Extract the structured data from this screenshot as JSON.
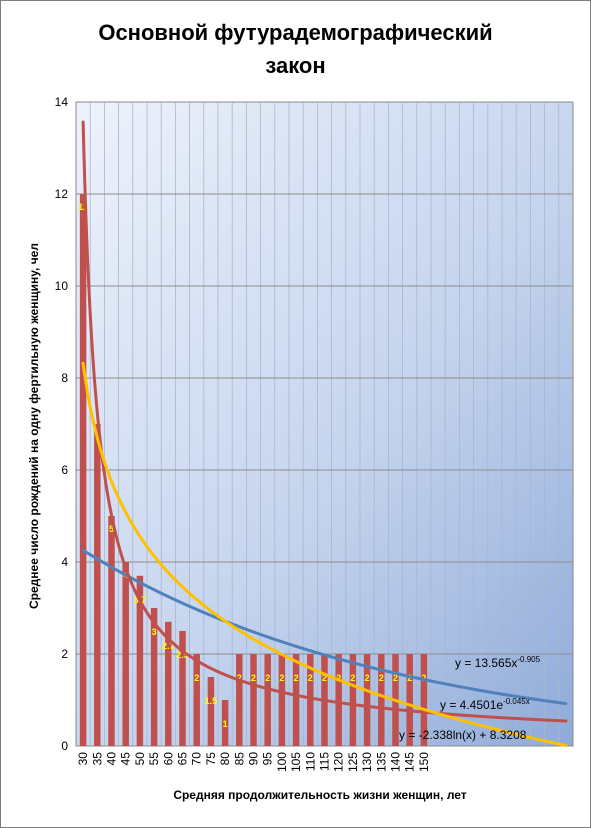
{
  "chart_data": {
    "type": "bar",
    "title": "Основной футурадемографический закон",
    "title_lines": [
      "Основной футурадемографический",
      "закон"
    ],
    "xlabel": "Средняя продолжительность жизни женщин, лет",
    "ylabel": "Среднее число рождений на одну фертильную женщину, чел",
    "categories": [
      "30",
      "35",
      "40",
      "45",
      "50",
      "55",
      "60",
      "65",
      "70",
      "75",
      "80",
      "85",
      "90",
      "95",
      "100",
      "105",
      "110",
      "115",
      "120",
      "125",
      "130",
      "135",
      "140",
      "145",
      "150"
    ],
    "values": [
      12,
      7,
      5,
      4,
      3.7,
      3,
      2.7,
      2.5,
      2,
      1.5,
      1,
      2,
      2,
      2,
      2,
      2,
      2,
      2,
      2,
      2,
      2,
      2,
      2,
      2,
      2
    ],
    "data_labels": [
      "12",
      "7",
      "5",
      "4",
      "3.7",
      "3",
      "2.7",
      "2.5",
      "2",
      "1.5",
      "1",
      "2",
      "2",
      "2",
      "2",
      "2",
      "2",
      "2",
      "2",
      "2",
      "2",
      "2",
      "2",
      "2",
      "2"
    ],
    "ylim": [
      0,
      14
    ],
    "yticks": [
      "0",
      "2",
      "4",
      "6",
      "8",
      "10",
      "12",
      "14"
    ],
    "grid": true,
    "bar_color": "#c0504d",
    "data_label_color": "#ffff00",
    "trendlines": [
      {
        "type": "power",
        "a": 13.565,
        "b": -0.905,
        "color": "#c0504d",
        "label_text": "y = 13.565x",
        "label_exp": "-0.905"
      },
      {
        "type": "exponential",
        "a": 4.4501,
        "b": -0.045,
        "color": "#4f81bd",
        "label_text": "y = 4.4501e",
        "label_exp": "-0.045x"
      },
      {
        "type": "logarithmic",
        "a": -2.338,
        "b": 8.3208,
        "color": "#ffc000",
        "label_text": "y = -2.338ln(x) + 8.3208",
        "label_exp": ""
      }
    ],
    "trend_colors": [
      "#c0504d",
      "#4f81bd",
      "#ffc000"
    ]
  }
}
